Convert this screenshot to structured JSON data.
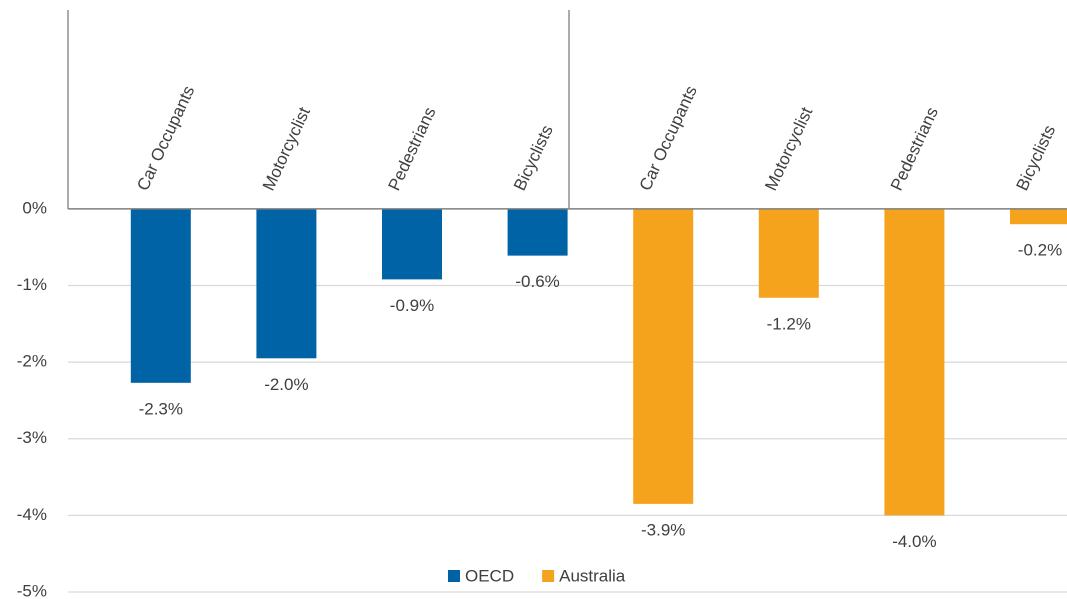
{
  "chart_data": {
    "type": "bar",
    "categories": [
      "Car Occupants",
      "Motorcyclist",
      "Pedestrians",
      "Bicyclists",
      "Car Occupants",
      "Motorcyclist",
      "Pedestrians",
      "Bicyclists"
    ],
    "series": [
      {
        "name": "OECD",
        "color": "#0063a6",
        "values": [
          -2.27,
          -1.95,
          -0.92,
          -0.61,
          null,
          null,
          null,
          null
        ],
        "value_labels": [
          "-2.3%",
          "-2.0%",
          "-0.9%",
          "-0.6%",
          null,
          null,
          null,
          null
        ]
      },
      {
        "name": "Australia",
        "color": "#f5a31d",
        "values": [
          null,
          null,
          null,
          null,
          -3.85,
          -1.16,
          -4.0,
          -0.2
        ],
        "value_labels": [
          null,
          null,
          null,
          null,
          "-3.9%",
          "-1.2%",
          "-4.0%",
          "-0.2%"
        ]
      }
    ],
    "ylim": [
      -5,
      2.7
    ],
    "yticks": [
      {
        "value": 0,
        "label": "0%"
      },
      {
        "value": -1,
        "label": "-1%"
      },
      {
        "value": -2,
        "label": "-2%"
      },
      {
        "value": -3,
        "label": "-3%"
      },
      {
        "value": -4,
        "label": "-4%"
      },
      {
        "value": -5,
        "label": "-5%"
      }
    ],
    "grid": true,
    "legend": "bottom"
  }
}
